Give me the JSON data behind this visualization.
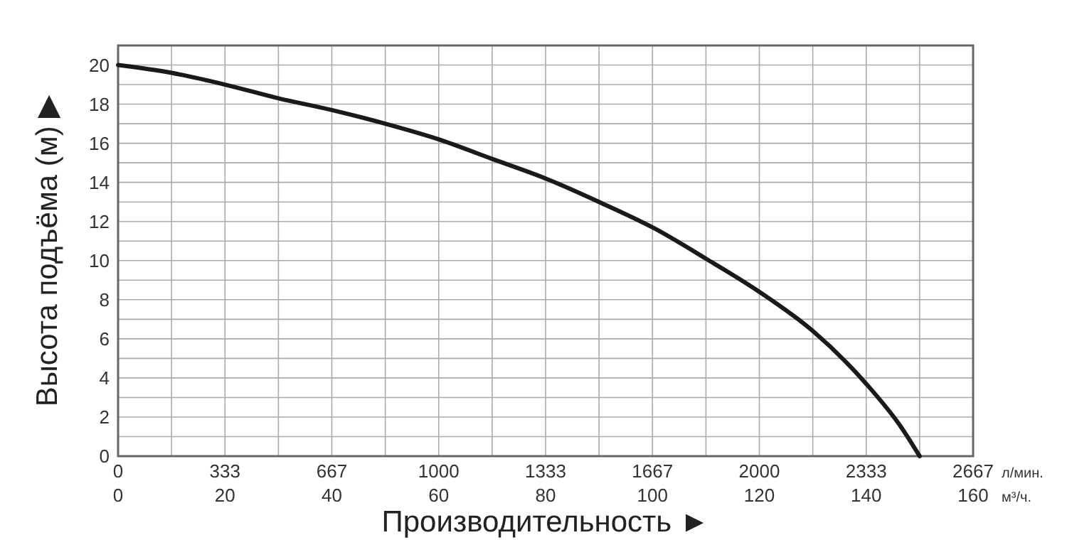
{
  "chart_data": {
    "type": "line",
    "xlabel": "Производительность ►",
    "ylabel": "Высота подъёма (м) ▶",
    "x": [
      0,
      10,
      20,
      30,
      40,
      50,
      60,
      70,
      80,
      90,
      100,
      110,
      120,
      130,
      140,
      146.5,
      150
    ],
    "series": [
      {
        "color": "#1a1a1a",
        "values": [
          20,
          19.6,
          19.0,
          18.3,
          17.7,
          17.0,
          16.2,
          15.2,
          14.2,
          13.0,
          11.7,
          10.1,
          8.4,
          6.4,
          3.7,
          1.5,
          0
        ]
      }
    ],
    "xlim": [
      0,
      160
    ],
    "xticks": [
      0,
      {
        "value": 10,
        "label": null
      },
      20,
      {
        "value": 30,
        "label": null
      },
      40,
      {
        "value": 50,
        "label": null
      },
      60,
      {
        "value": 70,
        "label": null
      },
      80,
      {
        "value": 90,
        "label": null
      },
      100,
      {
        "value": 110,
        "label": null
      },
      120,
      {
        "value": 130,
        "label": null
      },
      140,
      {
        "value": 150,
        "label": null
      },
      160
    ],
    "x2lim": [
      0,
      2666.67
    ],
    "x2ticks": [
      0,
      {
        "value": 333.33,
        "label": "333"
      },
      {
        "value": 666.67,
        "label": "667"
      },
      1000,
      {
        "value": 1333.33,
        "label": "1333"
      },
      {
        "value": 1666.67,
        "label": "1667"
      },
      2000,
      {
        "value": 2333.33,
        "label": "2333"
      },
      {
        "value": 2666.67,
        "label": "2667"
      }
    ],
    "ylim": [
      0,
      21
    ],
    "yticks": [
      0,
      {
        "value": 1,
        "label": null
      },
      2,
      {
        "value": 3,
        "label": null
      },
      4,
      {
        "value": 5,
        "label": null
      },
      6,
      {
        "value": 7,
        "label": null
      },
      8,
      {
        "value": 9,
        "label": null
      },
      10,
      {
        "value": 11,
        "label": null
      },
      12,
      {
        "value": 13,
        "label": null
      },
      14,
      {
        "value": 15,
        "label": null
      },
      16,
      {
        "value": 17,
        "label": null
      },
      18,
      {
        "value": 19,
        "label": null
      },
      20
    ],
    "grid": true,
    "annotations": [
      "л/мин.",
      "м³/ч."
    ]
  }
}
